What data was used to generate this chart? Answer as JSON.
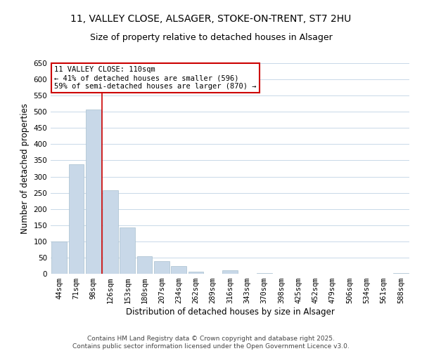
{
  "title": "11, VALLEY CLOSE, ALSAGER, STOKE-ON-TRENT, ST7 2HU",
  "subtitle": "Size of property relative to detached houses in Alsager",
  "xlabel": "Distribution of detached houses by size in Alsager",
  "ylabel": "Number of detached properties",
  "categories": [
    "44sqm",
    "71sqm",
    "98sqm",
    "126sqm",
    "153sqm",
    "180sqm",
    "207sqm",
    "234sqm",
    "262sqm",
    "289sqm",
    "316sqm",
    "343sqm",
    "370sqm",
    "398sqm",
    "425sqm",
    "452sqm",
    "479sqm",
    "506sqm",
    "534sqm",
    "561sqm",
    "588sqm"
  ],
  "values": [
    100,
    338,
    507,
    257,
    143,
    54,
    38,
    24,
    7,
    0,
    10,
    0,
    3,
    0,
    0,
    0,
    0,
    0,
    0,
    0,
    2
  ],
  "bar_color": "#c8d8e8",
  "bar_edge_color": "#a8bfce",
  "ylim": [
    0,
    650
  ],
  "yticks": [
    0,
    50,
    100,
    150,
    200,
    250,
    300,
    350,
    400,
    450,
    500,
    550,
    600,
    650
  ],
  "vertical_line_x": 2.5,
  "vline_color": "#cc0000",
  "annotation_title": "11 VALLEY CLOSE: 110sqm",
  "annotation_line1": "← 41% of detached houses are smaller (596)",
  "annotation_line2": "59% of semi-detached houses are larger (870) →",
  "annotation_box_color": "#cc0000",
  "footer_line1": "Contains HM Land Registry data © Crown copyright and database right 2025.",
  "footer_line2": "Contains public sector information licensed under the Open Government Licence v3.0.",
  "bg_color": "#ffffff",
  "grid_color": "#c8d8e8",
  "title_fontsize": 10,
  "subtitle_fontsize": 9,
  "axis_label_fontsize": 8.5,
  "tick_fontsize": 7.5,
  "annotation_fontsize": 7.5,
  "footer_fontsize": 6.5
}
